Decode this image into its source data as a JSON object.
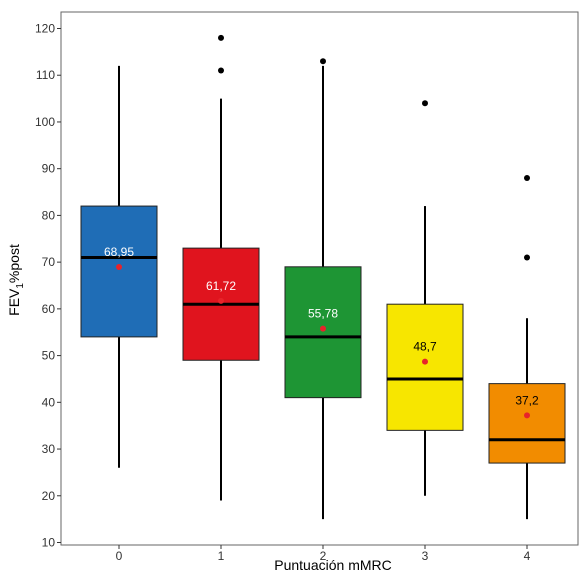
{
  "chart_data": {
    "type": "box",
    "xlabel": "Puntuación mMRC",
    "ylabel": "FEV1%post",
    "ylabel_main": "FEV",
    "ylabel_sub": "1",
    "ylabel_rest": "%post",
    "ylim": [
      10,
      122
    ],
    "yticks": [
      "10",
      "20",
      "30",
      "40",
      "50",
      "60",
      "70",
      "80",
      "90",
      "100",
      "110",
      "120"
    ],
    "categories": [
      "0",
      "1",
      "2",
      "3",
      "4"
    ],
    "boxes": [
      {
        "category": "0",
        "whisker_low": 26,
        "q1": 54,
        "median": 71,
        "q3": 82,
        "whisker_high": 112,
        "mean": 68.95,
        "mean_label": "68,95",
        "outliers": [],
        "color": "#1f6db6",
        "label_color": "#ffffff"
      },
      {
        "category": "1",
        "whisker_low": 19,
        "q1": 49,
        "median": 61,
        "q3": 73,
        "whisker_high": 105,
        "mean": 61.72,
        "mean_label": "61,72",
        "outliers": [
          118,
          111
        ],
        "color": "#e0141e",
        "label_color": "#ffffff"
      },
      {
        "category": "2",
        "whisker_low": 15,
        "q1": 41,
        "median": 54,
        "q3": 69,
        "whisker_high": 112,
        "mean": 55.78,
        "mean_label": "55,78",
        "outliers": [
          113
        ],
        "color": "#1e9534",
        "label_color": "#ffffff"
      },
      {
        "category": "3",
        "whisker_low": 20,
        "q1": 34,
        "median": 45,
        "q3": 61,
        "whisker_high": 82,
        "mean": 48.7,
        "mean_label": "48,7",
        "outliers": [
          104
        ],
        "color": "#f7e600",
        "label_color": "#000000"
      },
      {
        "category": "4",
        "whisker_low": 15,
        "q1": 27,
        "median": 32,
        "q3": 44,
        "whisker_high": 58,
        "mean": 37.2,
        "mean_label": "37,2",
        "outliers": [
          88,
          71
        ],
        "color": "#f28c00",
        "label_color": "#000000"
      }
    ],
    "mean_marker_color": "#e8232a",
    "grid": false
  }
}
